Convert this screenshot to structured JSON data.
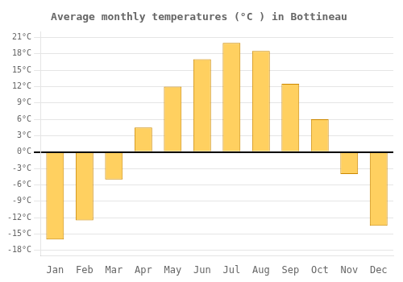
{
  "chart_data": {
    "type": "bar",
    "title": "Average monthly temperatures (°C ) in Bottineau",
    "categories": [
      "Jan",
      "Feb",
      "Mar",
      "Apr",
      "May",
      "Jun",
      "Jul",
      "Aug",
      "Sep",
      "Oct",
      "Nov",
      "Dec"
    ],
    "values": [
      -16.0,
      -12.5,
      -5.0,
      4.5,
      12.0,
      17.0,
      20.0,
      18.5,
      12.5,
      6.0,
      -4.0,
      -13.5
    ],
    "color": "#FFD060",
    "ylim": [
      -19,
      22
    ],
    "yticks": [
      {
        "value": -18,
        "label": "-18°C"
      },
      {
        "value": -15,
        "label": "-15°C"
      },
      {
        "value": -12,
        "label": "-12°C"
      },
      {
        "value": -9,
        "label": "-9°C"
      },
      {
        "value": -6,
        "label": "-6°C"
      },
      {
        "value": -3,
        "label": "-3°C"
      },
      {
        "value": 0,
        "label": "0°C"
      },
      {
        "value": 3,
        "label": "3°C"
      },
      {
        "value": 6,
        "label": "6°C"
      },
      {
        "value": 9,
        "label": "9°C"
      },
      {
        "value": 12,
        "label": "12°C"
      },
      {
        "value": 15,
        "label": "15°C"
      },
      {
        "value": 18,
        "label": "18°C"
      },
      {
        "value": 21,
        "label": "21°C"
      }
    ],
    "grid": true
  }
}
